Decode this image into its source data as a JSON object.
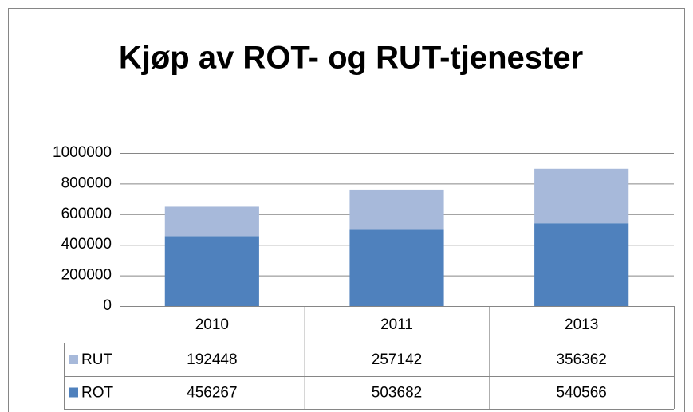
{
  "chart_data": {
    "type": "stacked_bar",
    "title": "Kjøp av ROT- og RUT-tjenester",
    "categories": [
      "2010",
      "2011",
      "2013"
    ],
    "series": [
      {
        "name": "RUT",
        "color": "#a7b9da",
        "values": [
          192448,
          257142,
          356362
        ]
      },
      {
        "name": "ROT",
        "color": "#4f81bd",
        "values": [
          456267,
          503682,
          540566
        ]
      }
    ],
    "ylim": [
      0,
      1000000
    ],
    "yticks": [
      0,
      200000,
      400000,
      600000,
      800000,
      1000000
    ],
    "grid": true,
    "data_table": true
  }
}
